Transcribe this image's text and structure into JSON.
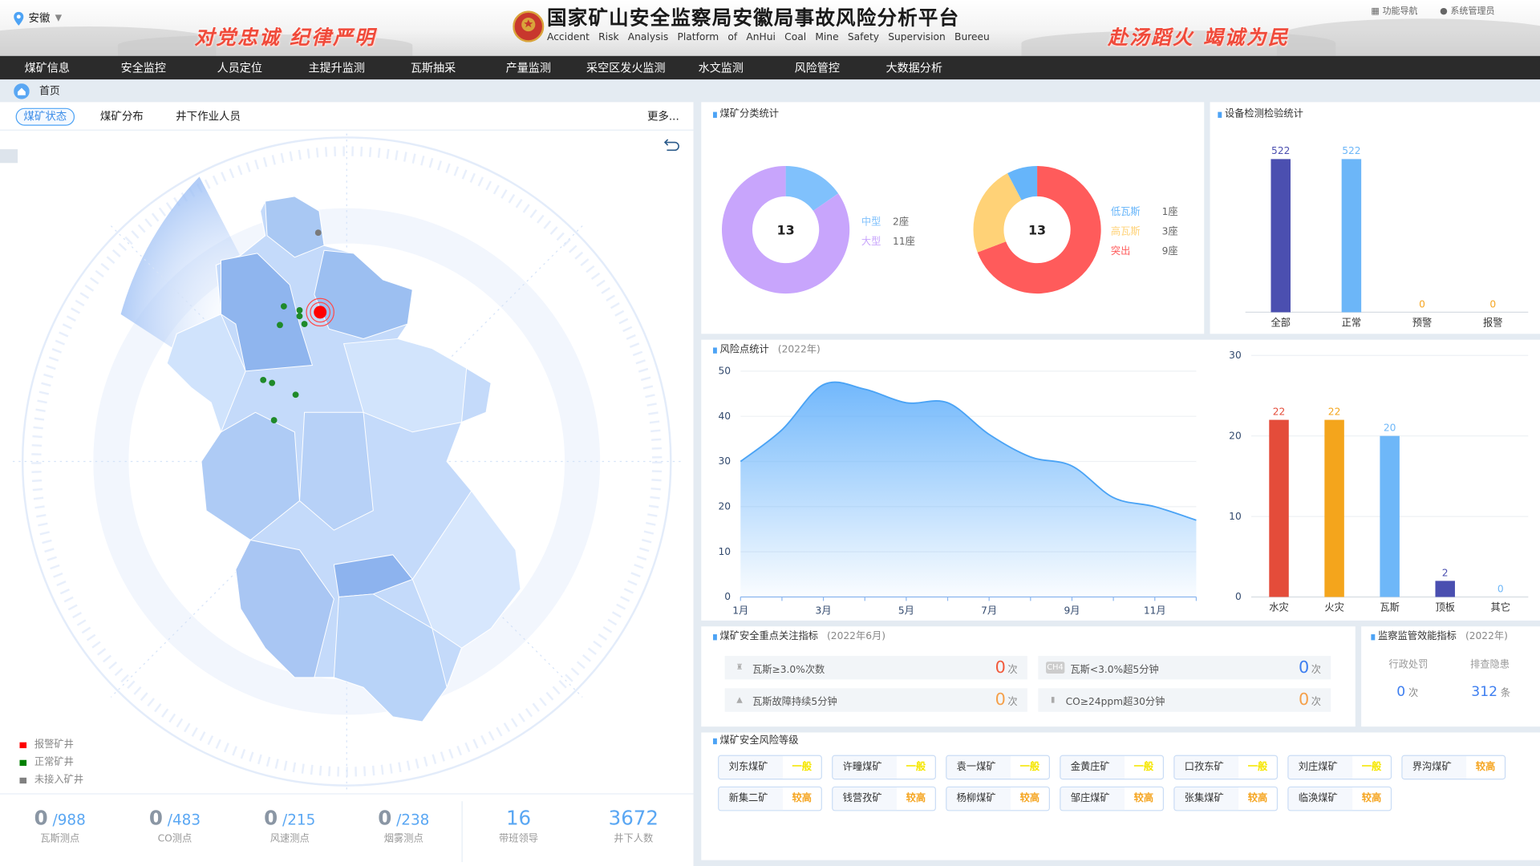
{
  "header": {
    "region": "安徽",
    "slogan_left": "对党忠诚  纪律严明",
    "slogan_right": "赴汤蹈火  竭诚为民",
    "title": "国家矿山安全监察局安徽局事故风险分析平台",
    "subtitle": "Accident Risk Analysis Platform of AnHui Coal Mine Safety Supervision Bureeu",
    "func_nav": "功能导航",
    "user": "系统管理员"
  },
  "nav": [
    "煤矿信息",
    "安全监控",
    "人员定位",
    "主提升监测",
    "瓦斯抽采",
    "产量监测",
    "采空区发火监测",
    "水文监测",
    "风险管控",
    "大数据分析"
  ],
  "breadcrumb": {
    "home": "首页"
  },
  "left": {
    "tabs": [
      "煤矿状态",
      "煤矿分布",
      "井下作业人员"
    ],
    "active_tab": 0,
    "more": "更多...",
    "legend": [
      {
        "label": "报警矿井",
        "color": "#ff0000"
      },
      {
        "label": "正常矿井",
        "color": "#008000"
      },
      {
        "label": "未接入矿井",
        "color": "#808080"
      }
    ],
    "stats": [
      {
        "value": "0",
        "total": "/988",
        "label": "瓦斯测点"
      },
      {
        "value": "0",
        "total": "/483",
        "label": "CO测点"
      },
      {
        "value": "0",
        "total": "/215",
        "label": "风速测点"
      },
      {
        "value": "0",
        "total": "/238",
        "label": "烟雾测点"
      }
    ],
    "stats2": [
      {
        "value": "16",
        "label": "带班领导"
      },
      {
        "value": "3672",
        "label": "井下人数"
      }
    ]
  },
  "chart_data": [
    {
      "id": "mine-type",
      "type": "pie",
      "title": "煤矿分类统计",
      "center_label": "13",
      "slices": [
        {
          "name": "中型",
          "value": 2,
          "unit": "座",
          "display": "2座",
          "color": "#80c1fc"
        },
        {
          "name": "大型",
          "value": 11,
          "unit": "座",
          "display": "11座",
          "color": "#c8a5fc"
        }
      ]
    },
    {
      "id": "gas-type",
      "type": "pie",
      "title": "",
      "center_label": "13",
      "slices": [
        {
          "name": "突出",
          "value": 9,
          "display": "9座",
          "color": "#ff5b5b"
        },
        {
          "name": "高瓦斯",
          "value": 3,
          "display": "3座",
          "color": "#ffd277"
        },
        {
          "name": "低瓦斯",
          "value": 1,
          "display": "1座",
          "color": "#66b5fa"
        }
      ],
      "legend_order": [
        "低瓦斯",
        "高瓦斯",
        "突出"
      ]
    },
    {
      "id": "device",
      "type": "bar",
      "title": "设备检测检验统计",
      "categories": [
        "全部",
        "正常",
        "预警",
        "报警"
      ],
      "values": [
        522,
        522,
        0,
        0
      ],
      "colors": [
        "#4b4fb0",
        "#6cb6f8",
        "#f5a623",
        "#f5a623"
      ],
      "ylim": [
        0,
        522
      ]
    },
    {
      "id": "risk-trend",
      "type": "area",
      "title": "风险点统计",
      "period": "(2022年)",
      "x": [
        "1月",
        "2月",
        "3月",
        "4月",
        "5月",
        "6月",
        "7月",
        "8月",
        "9月",
        "10月",
        "11月",
        "12月"
      ],
      "x_tick_labels": [
        "1月",
        "3月",
        "5月",
        "7月",
        "9月",
        "11月"
      ],
      "values": [
        30,
        37,
        47,
        46,
        43,
        43,
        36,
        31,
        29,
        22,
        20,
        17
      ],
      "ylim": [
        0,
        50
      ],
      "yticks": [
        0,
        10,
        20,
        30,
        40,
        50
      ],
      "grid": true,
      "color": "#4aa3f5"
    },
    {
      "id": "risk-category",
      "type": "bar",
      "categories": [
        "水灾",
        "火灾",
        "瓦斯",
        "顶板",
        "其它"
      ],
      "values": [
        22,
        22,
        20,
        2,
        0
      ],
      "colors": [
        "#e44c3a",
        "#f4a51c",
        "#6eb7f8",
        "#4a4fb0",
        "#6eb7f8"
      ],
      "ylim": [
        0,
        30
      ],
      "yticks": [
        0,
        10,
        20,
        30
      ],
      "grid": true
    }
  ],
  "indicators": {
    "title": "煤矿安全重点关注指标",
    "period": "(2022年6月)",
    "items": [
      {
        "label": "瓦斯≥3.0%次数",
        "value": "0",
        "unit": "次",
        "color": "#f25a3c",
        "icon": "alarm-light-icon"
      },
      {
        "label": "瓦斯<3.0%超5分钟",
        "value": "0",
        "unit": "次",
        "color": "#3d7ef0",
        "icon": "ch4-icon",
        "icon_text": "CH4"
      },
      {
        "label": "瓦斯故障持续5分钟",
        "value": "0",
        "unit": "次",
        "color": "#f5a04a",
        "icon": "warning-icon"
      },
      {
        "label": "CO≥24ppm超30分钟",
        "value": "0",
        "unit": "次",
        "color": "#f5a04a",
        "icon": "document-icon"
      }
    ]
  },
  "supervision": {
    "title": "监察监管效能指标",
    "period": "(2022年)",
    "items": [
      {
        "label": "行政处罚",
        "value": "0",
        "unit": "次"
      },
      {
        "label": "排查隐患",
        "value": "312",
        "unit": "条"
      }
    ]
  },
  "risk_levels": {
    "title": "煤矿安全风险等级",
    "level_colors": {
      "一般": "#f5e600",
      "较高": "#f5a623"
    },
    "mines": [
      {
        "name": "刘东煤矿",
        "level": "一般"
      },
      {
        "name": "许疃煤矿",
        "level": "一般"
      },
      {
        "name": "袁一煤矿",
        "level": "一般"
      },
      {
        "name": "金黄庄矿",
        "level": "一般"
      },
      {
        "name": "口孜东矿",
        "level": "一般"
      },
      {
        "name": "刘庄煤矿",
        "level": "一般"
      },
      {
        "name": "界沟煤矿",
        "level": "较高"
      },
      {
        "name": "新集二矿",
        "level": "较高"
      },
      {
        "name": "钱营孜矿",
        "level": "较高"
      },
      {
        "name": "杨柳煤矿",
        "level": "较高"
      },
      {
        "name": "邹庄煤矿",
        "level": "较高"
      },
      {
        "name": "张集煤矿",
        "level": "较高"
      },
      {
        "name": "临涣煤矿",
        "level": "较高"
      }
    ]
  }
}
